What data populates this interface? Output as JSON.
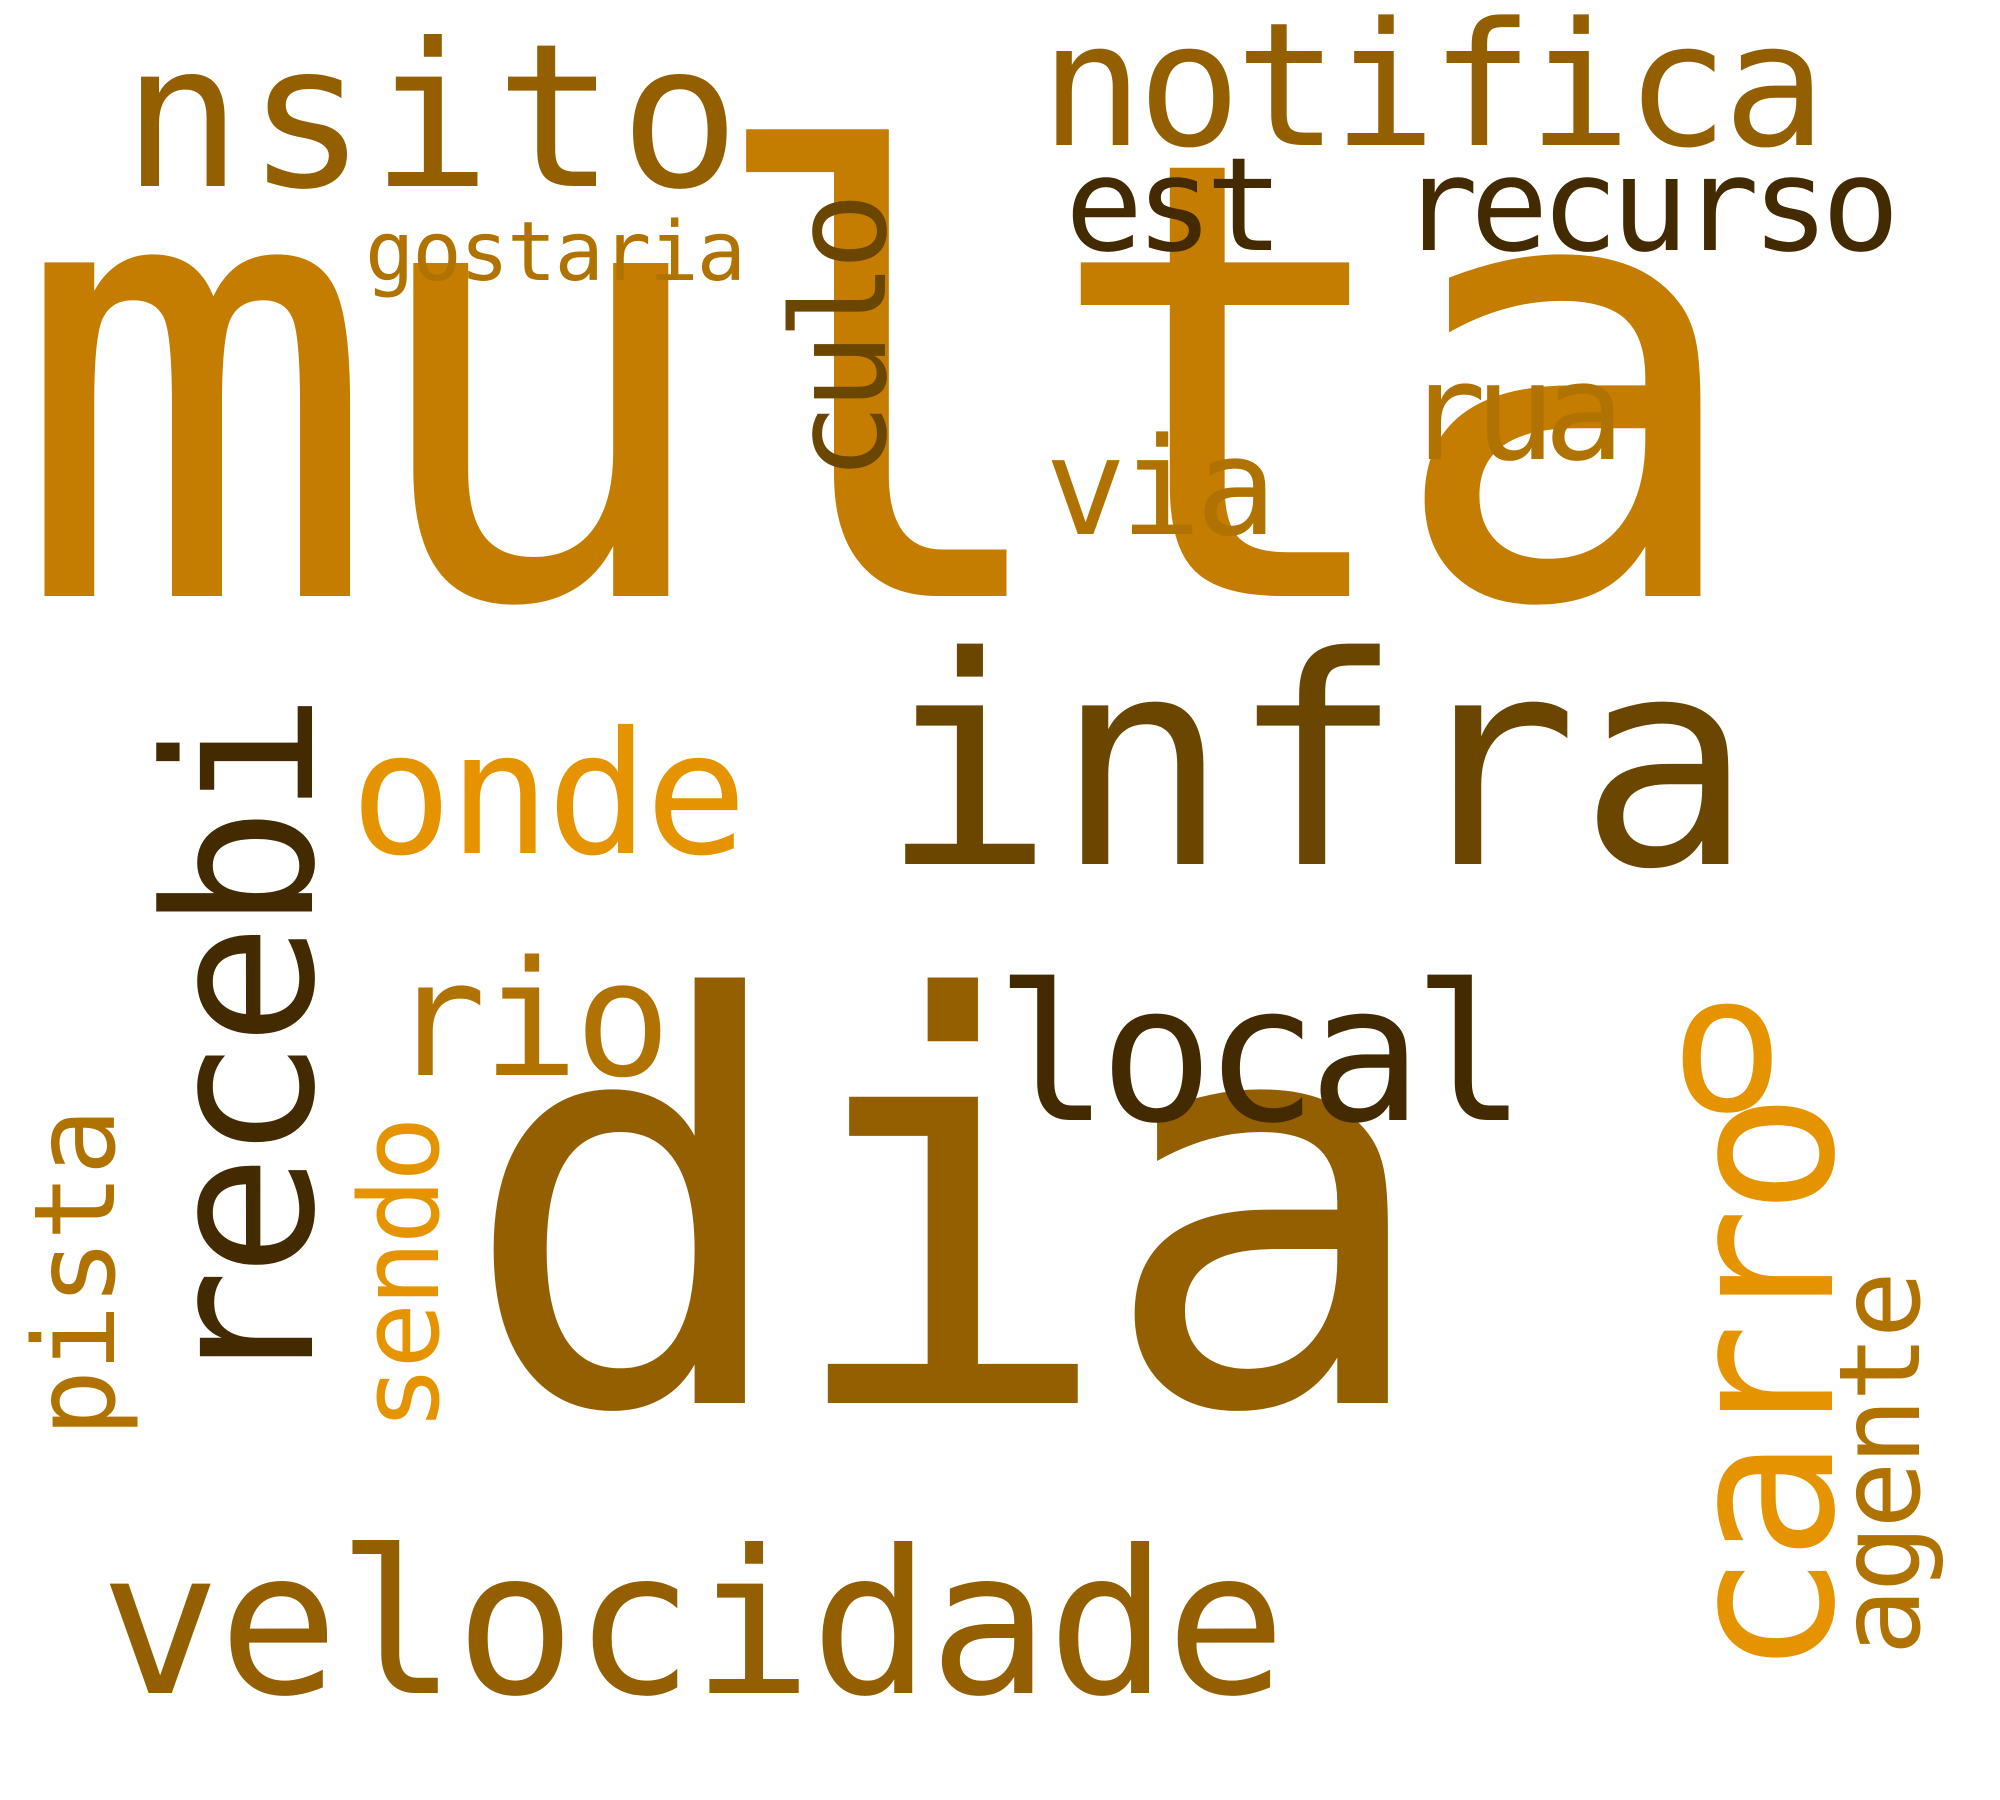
{
  "words": {
    "multa": "multa",
    "dia": "dia",
    "infra": "infra",
    "velocidade": "velocidade",
    "recebi": "recebi",
    "nsito": "nsito",
    "notifica": "notifica",
    "carro": "carro",
    "local": "local",
    "o": "o",
    "recurso": "recurso",
    "est": "est",
    "onde": "onde",
    "rio": "rio",
    "culo": "culo",
    "rua": "rua",
    "via": "via",
    "gostaria": "gostaria",
    "sendo": "sendo",
    "pista": "pista",
    "agente": "agente"
  },
  "colors": {
    "light_orange": "#e59400",
    "orange": "#c47d00",
    "amber": "#b07200",
    "brown": "#935f00",
    "dark_brown": "#6b4600",
    "darkest_brown": "#432a00"
  }
}
